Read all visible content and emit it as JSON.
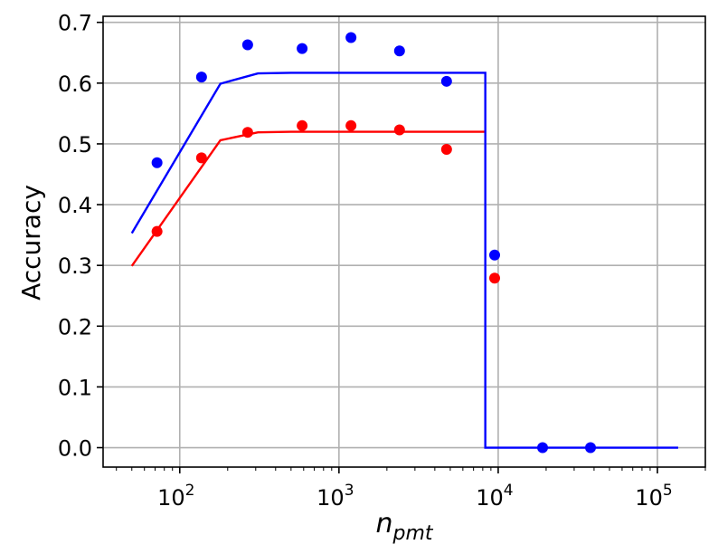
{
  "chart_data": {
    "type": "scatter",
    "title": "",
    "xlabel": {
      "base": "n",
      "sub": "pmt"
    },
    "ylabel": "Accuracy",
    "xscale": "log",
    "xlim": [
      33,
      200000
    ],
    "ylim": [
      -0.032,
      0.71
    ],
    "grid": true,
    "x_ticks": [
      {
        "value": 100,
        "base": "10",
        "exp": "2"
      },
      {
        "value": 1000,
        "base": "10",
        "exp": "3"
      },
      {
        "value": 10000,
        "base": "10",
        "exp": "4"
      },
      {
        "value": 100000,
        "base": "10",
        "exp": "5"
      }
    ],
    "y_ticks": [
      {
        "value": 0.0,
        "label": "0.0"
      },
      {
        "value": 0.1,
        "label": "0.1"
      },
      {
        "value": 0.2,
        "label": "0.2"
      },
      {
        "value": 0.3,
        "label": "0.3"
      },
      {
        "value": 0.4,
        "label": "0.4"
      },
      {
        "value": 0.5,
        "label": "0.5"
      },
      {
        "value": 0.6,
        "label": "0.6"
      },
      {
        "value": 0.7,
        "label": "0.7"
      }
    ],
    "series": [
      {
        "color": "#0000ff",
        "kind": "points",
        "points": [
          [
            72,
            0.469
          ],
          [
            137,
            0.61
          ],
          [
            267,
            0.663
          ],
          [
            587,
            0.657
          ],
          [
            1190,
            0.675
          ],
          [
            2400,
            0.653
          ],
          [
            4740,
            0.603
          ],
          [
            9500,
            0.317
          ],
          [
            19000,
            0.0
          ],
          [
            38000,
            0.0
          ]
        ]
      },
      {
        "color": "#ff0000",
        "kind": "points",
        "points": [
          [
            72,
            0.356
          ],
          [
            137,
            0.477
          ],
          [
            267,
            0.519
          ],
          [
            587,
            0.53
          ],
          [
            1190,
            0.53
          ],
          [
            2400,
            0.523
          ],
          [
            4740,
            0.491
          ],
          [
            9500,
            0.279
          ]
        ]
      },
      {
        "color": "#ff0000",
        "kind": "line",
        "points": [
          [
            50,
            0.299
          ],
          [
            180,
            0.506
          ],
          [
            310,
            0.519
          ],
          [
            500,
            0.52
          ],
          [
            1000,
            0.52
          ],
          [
            3000,
            0.52
          ],
          [
            8300,
            0.52
          ]
        ]
      },
      {
        "color": "#0000ff",
        "kind": "line",
        "points": [
          [
            50,
            0.353
          ],
          [
            180,
            0.599
          ],
          [
            310,
            0.616
          ],
          [
            500,
            0.617
          ],
          [
            1000,
            0.617
          ],
          [
            3000,
            0.617
          ],
          [
            8300,
            0.617
          ],
          [
            8300,
            0.0
          ],
          [
            135000,
            0.0
          ]
        ]
      }
    ]
  }
}
